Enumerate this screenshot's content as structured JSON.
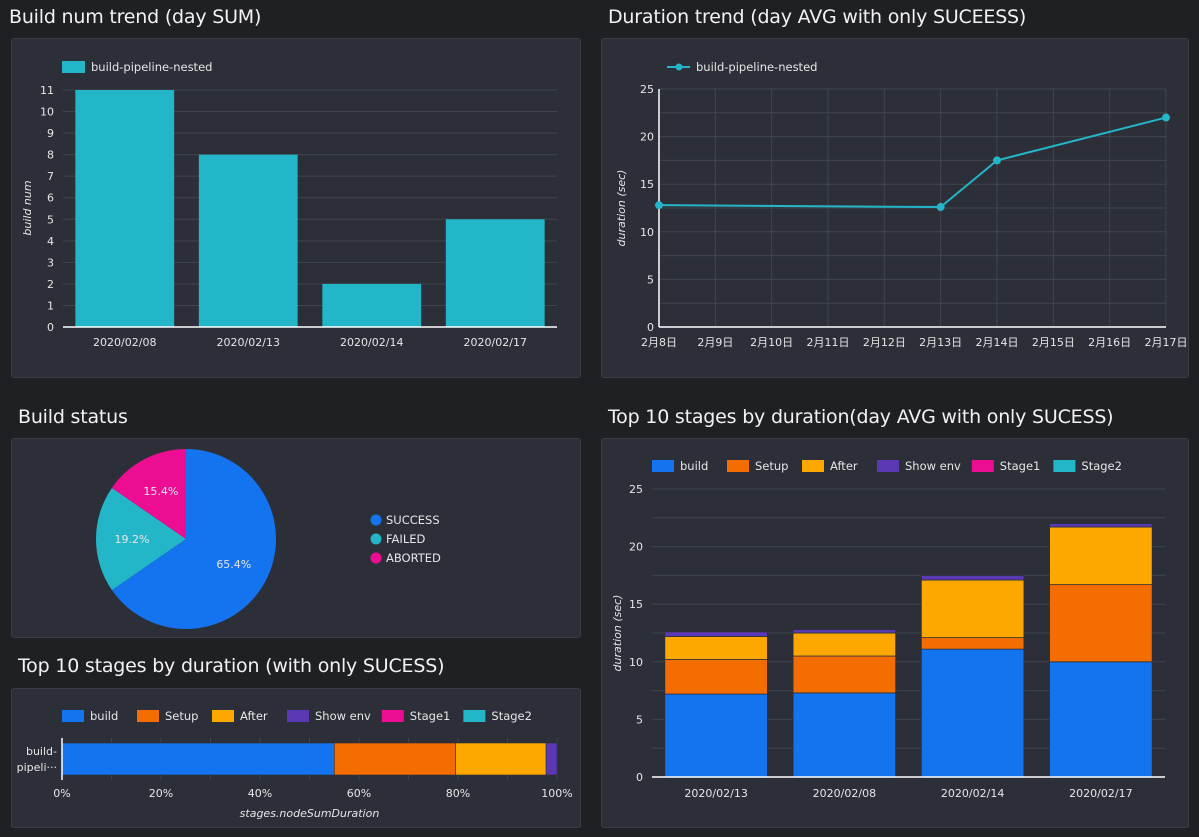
{
  "colors": {
    "background": "#1f2024",
    "panel": "#2c2f38",
    "teal": "#23b6c9",
    "blue": "#1473ef",
    "orange": "#f46d01",
    "amber": "#fca800",
    "purple": "#5b38b4",
    "pink": "#ec0d93"
  },
  "chart_data": [
    {
      "id": "build-num-trend",
      "type": "bar",
      "title": "Build num trend (day SUM)",
      "legend": [
        "build-pipeline-nested"
      ],
      "legend_position": "top-left",
      "categories": [
        "2020/02/08",
        "2020/02/13",
        "2020/02/14",
        "2020/02/17"
      ],
      "series": [
        {
          "name": "build-pipeline-nested",
          "values": [
            11,
            8,
            2,
            5
          ],
          "color": "#23b6c9"
        }
      ],
      "xlabel": "",
      "ylabel": "build num",
      "ylim": [
        0,
        11
      ],
      "yticks": [
        "0",
        "1",
        "2",
        "3",
        "4",
        "5",
        "6",
        "7",
        "8",
        "9",
        "10",
        "11"
      ],
      "grid": true
    },
    {
      "id": "duration-trend",
      "type": "line",
      "title": "Duration trend (day AVG with only SUCEESS)",
      "legend": [
        "build-pipeline-nested"
      ],
      "legend_position": "top-left",
      "x_ticks": [
        "2月8日",
        "2月9日",
        "2月10日",
        "2月11日",
        "2月12日",
        "2月13日",
        "2月14日",
        "2月15日",
        "2月16日",
        "2月17日"
      ],
      "x_domain_days": [
        8,
        17
      ],
      "series": [
        {
          "name": "build-pipeline-nested",
          "color": "#23b6c9",
          "points": [
            {
              "x": 8,
              "y": 12.8
            },
            {
              "x": 13,
              "y": 12.6
            },
            {
              "x": 14,
              "y": 17.5
            },
            {
              "x": 17,
              "y": 22.0
            }
          ]
        }
      ],
      "xlabel": "",
      "ylabel": "duration (sec)",
      "ylim": [
        0,
        25
      ],
      "yticks": [
        "0",
        "5",
        "10",
        "15",
        "20",
        "25"
      ],
      "grid": true
    },
    {
      "id": "build-status",
      "type": "pie",
      "title": "Build status",
      "legend_position": "right",
      "slices": [
        {
          "label": "SUCCESS",
          "value": 65.4,
          "display": "65.4%",
          "color": "#1473ef"
        },
        {
          "label": "FAILED",
          "value": 19.2,
          "display": "19.2%",
          "color": "#23b6c9"
        },
        {
          "label": "ABORTED",
          "value": 15.4,
          "display": "15.4%",
          "color": "#ec0d93"
        }
      ]
    },
    {
      "id": "top-stages-total",
      "type": "bar",
      "orientation": "horizontal",
      "stacked": "percent",
      "title": "Top 10 stages by duration (with only SUCESS)",
      "legend": [
        "build",
        "Setup",
        "After",
        "Show env",
        "Stage1",
        "Stage2"
      ],
      "legend_position": "top",
      "categories": [
        "build-pipeli…"
      ],
      "category_lines": [
        "build-",
        "pipeli···"
      ],
      "series": [
        {
          "name": "build",
          "values": [
            55.0
          ],
          "color": "#1473ef"
        },
        {
          "name": "Setup",
          "values": [
            24.5
          ],
          "color": "#f46d01"
        },
        {
          "name": "After",
          "values": [
            18.3
          ],
          "color": "#fca800"
        },
        {
          "name": "Show env",
          "values": [
            2.2
          ],
          "color": "#5b38b4"
        },
        {
          "name": "Stage1",
          "values": [
            0
          ],
          "color": "#ec0d93"
        },
        {
          "name": "Stage2",
          "values": [
            0
          ],
          "color": "#23b6c9"
        }
      ],
      "xlabel": "stages.nodeSumDuration",
      "xlim": [
        0,
        100
      ],
      "xticks": [
        "0%",
        "20%",
        "40%",
        "60%",
        "80%",
        "100%"
      ]
    },
    {
      "id": "top-stages-daily",
      "type": "bar",
      "stacked": true,
      "title": "Top 10 stages by duration(day AVG with only SUCESS)",
      "legend": [
        "build",
        "Setup",
        "After",
        "Show env",
        "Stage1",
        "Stage2"
      ],
      "legend_position": "top",
      "categories": [
        "2020/02/13",
        "2020/02/08",
        "2020/02/14",
        "2020/02/17"
      ],
      "series": [
        {
          "name": "build",
          "values": [
            7.2,
            7.3,
            11.1,
            10.0
          ],
          "color": "#1473ef"
        },
        {
          "name": "Setup",
          "values": [
            3.0,
            3.2,
            1.0,
            6.7
          ],
          "color": "#f46d01"
        },
        {
          "name": "After",
          "values": [
            2.0,
            2.0,
            5.0,
            5.0
          ],
          "color": "#fca800"
        },
        {
          "name": "Show env",
          "values": [
            0.4,
            0.3,
            0.4,
            0.3
          ],
          "color": "#5b38b4"
        },
        {
          "name": "Stage1",
          "values": [
            0,
            0,
            0,
            0
          ],
          "color": "#ec0d93"
        },
        {
          "name": "Stage2",
          "values": [
            0,
            0,
            0,
            0
          ],
          "color": "#23b6c9"
        }
      ],
      "xlabel": "",
      "ylabel": "duration (sec)",
      "ylim": [
        0,
        25
      ],
      "yticks": [
        "0",
        "5",
        "10",
        "15",
        "20",
        "25"
      ],
      "grid": true
    }
  ]
}
